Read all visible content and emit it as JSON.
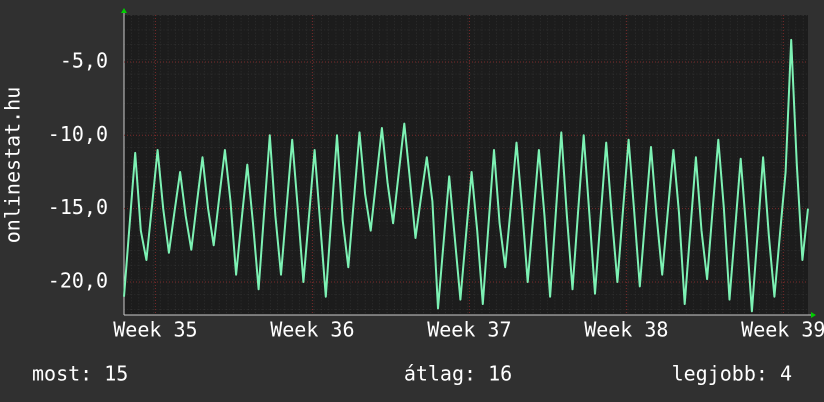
{
  "chart_data": {
    "type": "line",
    "y_label": "onlinestat.hu",
    "color": "#7df2b4",
    "x": [
      0,
      0.25,
      0.5,
      0.75,
      1,
      1.25,
      1.5,
      1.75,
      2,
      2.25,
      2.5,
      2.75,
      3,
      3.25,
      3.5,
      3.75,
      4,
      4.25,
      4.5,
      4.75,
      5,
      5.25,
      5.5,
      5.75,
      6,
      6.25,
      6.5,
      6.75,
      7,
      7.25,
      7.5,
      7.75,
      8,
      8.25,
      8.5,
      8.75,
      9,
      9.25,
      9.5,
      9.75,
      10,
      10.25,
      10.5,
      10.75,
      11,
      11.25,
      11.5,
      11.75,
      12,
      12.25,
      12.5,
      12.75,
      13,
      13.25,
      13.5,
      13.75,
      14,
      14.25,
      14.5,
      14.75,
      15,
      15.25,
      15.5,
      15.75,
      16,
      16.25,
      16.5,
      16.75,
      17,
      17.25,
      17.5,
      17.75,
      18,
      18.25,
      18.5,
      18.75,
      19,
      19.25,
      19.5,
      19.75,
      20,
      20.25,
      20.5,
      20.75,
      21,
      21.25,
      21.5,
      21.75,
      22,
      22.25,
      22.5,
      22.75,
      23,
      23.25,
      23.5,
      23.75,
      24,
      24.25,
      24.5,
      24.75,
      25,
      25.25,
      25.5,
      25.75,
      26,
      26.25,
      26.5,
      26.75,
      27,
      27.25,
      27.5,
      27.75,
      28,
      28.25,
      28.5,
      28.75,
      29,
      29.25,
      29.5,
      29.75,
      30,
      30.25,
      30.5
    ],
    "values": [
      -21,
      -16.1,
      -11.2,
      -16.5,
      -18.5,
      -14.8,
      -11,
      -15,
      -18,
      -15.2,
      -12.5,
      -15.5,
      -17.8,
      -14.6,
      -11.5,
      -15,
      -17.5,
      -14.2,
      -11,
      -14.5,
      -19.5,
      -15.7,
      -12,
      -16,
      -20.5,
      -15.2,
      -10,
      -15.5,
      -19.5,
      -14.9,
      -10.3,
      -15,
      -20,
      -15.5,
      -11,
      -16,
      -21,
      -15.5,
      -10,
      -15.8,
      -19,
      -14.4,
      -9.8,
      -14,
      -16.5,
      -13,
      -9.5,
      -13.2,
      -16,
      -12.6,
      -9.2,
      -13,
      -17,
      -14.2,
      -11.5,
      -14.5,
      -21.8,
      -17.3,
      -12.8,
      -17,
      -21.2,
      -16.8,
      -12.5,
      -16.5,
      -21.5,
      -16.2,
      -11,
      -16,
      -19,
      -14.8,
      -10.5,
      -15,
      -20,
      -15.5,
      -11,
      -15.5,
      -21,
      -15.4,
      -9.8,
      -15.5,
      -20.5,
      -15.2,
      -10,
      -15.3,
      -20.8,
      -15.6,
      -10.5,
      -15.5,
      -20,
      -15.1,
      -10.3,
      -15.2,
      -20.3,
      -15.5,
      -10.8,
      -15.5,
      -19.5,
      -15.2,
      -11,
      -15.3,
      -21.5,
      -16.5,
      -11.5,
      -16.5,
      -19.8,
      -15,
      -10.3,
      -15,
      -21.2,
      -16.4,
      -11.6,
      -16.5,
      -22,
      -16.8,
      -11.5,
      -16.8,
      -21,
      -16.7,
      -12.5,
      -3.5,
      -12,
      -18.5,
      -15
    ],
    "xlim": [
      0,
      30.5
    ],
    "xticks": [
      {
        "value": 1.4,
        "label": "Week 35"
      },
      {
        "value": 8.4,
        "label": "Week 36"
      },
      {
        "value": 15.4,
        "label": "Week 37"
      },
      {
        "value": 22.4,
        "label": "Week 38"
      },
      {
        "value": 29.4,
        "label": "Week 39"
      }
    ],
    "ylim": [
      -22.25,
      -1.8
    ],
    "yticks": [
      {
        "value": -5,
        "label": "-5,0"
      },
      {
        "value": -10,
        "label": "-10,0"
      },
      {
        "value": -15,
        "label": "-15,0"
      },
      {
        "value": -20,
        "label": "-20,0"
      }
    ],
    "grid": true,
    "footer": [
      "most: 15",
      "átlag: 16",
      "legjobb: 4"
    ]
  }
}
